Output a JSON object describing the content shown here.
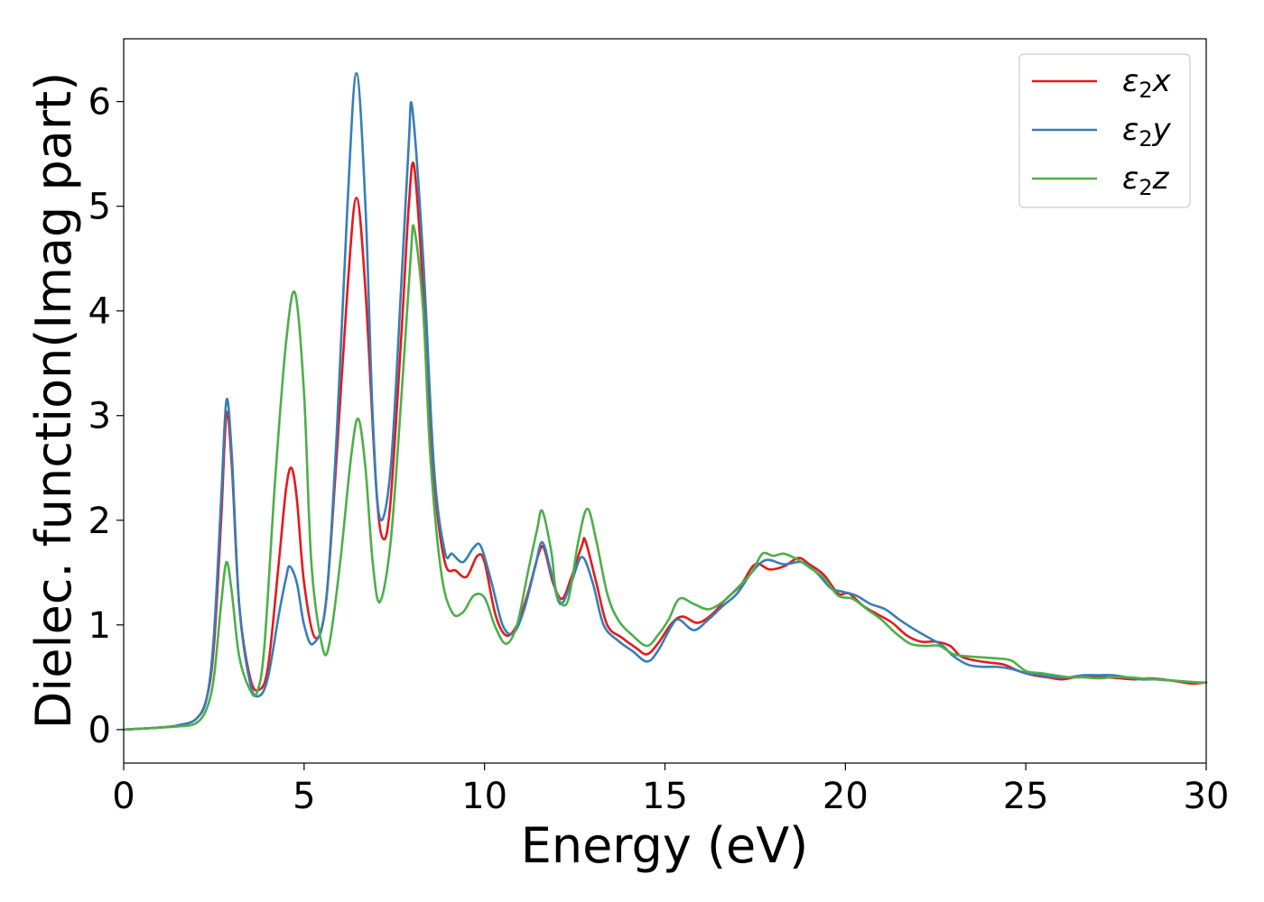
{
  "chart_data": {
    "type": "line",
    "title": "",
    "xlabel": "Energy (eV)",
    "ylabel": "Dielec. function(Imag part)",
    "xlim": [
      0,
      30
    ],
    "ylim": [
      -0.32,
      6.6
    ],
    "xticks": [
      0,
      5,
      10,
      15,
      20,
      25,
      30
    ],
    "yticks": [
      0,
      1,
      2,
      3,
      4,
      5,
      6
    ],
    "grid": false,
    "legend_position": "top-right",
    "legend": [
      {
        "base": "ε",
        "sub": "2",
        "var": "x"
      },
      {
        "base": "ε",
        "sub": "2",
        "var": "y"
      },
      {
        "base": "ε",
        "sub": "2",
        "var": "z"
      }
    ],
    "series": [
      {
        "name": "ε2x",
        "color": "#e41a1c",
        "points": [
          [
            0,
            0
          ],
          [
            1,
            0.02
          ],
          [
            1.5,
            0.04
          ],
          [
            2.0,
            0.1
          ],
          [
            2.3,
            0.3
          ],
          [
            2.5,
            0.8
          ],
          [
            2.7,
            2.0
          ],
          [
            2.85,
            3.02
          ],
          [
            3.0,
            2.5
          ],
          [
            3.2,
            1.2
          ],
          [
            3.5,
            0.5
          ],
          [
            3.75,
            0.38
          ],
          [
            4.0,
            0.6
          ],
          [
            4.3,
            1.6
          ],
          [
            4.5,
            2.3
          ],
          [
            4.65,
            2.5
          ],
          [
            4.8,
            2.2
          ],
          [
            5.0,
            1.4
          ],
          [
            5.3,
            0.88
          ],
          [
            5.6,
            1.2
          ],
          [
            5.9,
            2.6
          ],
          [
            6.2,
            4.2
          ],
          [
            6.45,
            5.08
          ],
          [
            6.7,
            4.2
          ],
          [
            7.0,
            2.3
          ],
          [
            7.2,
            1.82
          ],
          [
            7.4,
            2.2
          ],
          [
            7.7,
            3.8
          ],
          [
            7.9,
            5.0
          ],
          [
            8.05,
            5.38
          ],
          [
            8.3,
            4.2
          ],
          [
            8.6,
            2.4
          ],
          [
            8.9,
            1.6
          ],
          [
            9.2,
            1.52
          ],
          [
            9.5,
            1.46
          ],
          [
            9.8,
            1.66
          ],
          [
            10.0,
            1.6
          ],
          [
            10.3,
            1.1
          ],
          [
            10.6,
            0.9
          ],
          [
            10.9,
            1.0
          ],
          [
            11.2,
            1.3
          ],
          [
            11.5,
            1.68
          ],
          [
            11.65,
            1.73
          ],
          [
            11.9,
            1.4
          ],
          [
            12.15,
            1.25
          ],
          [
            12.4,
            1.45
          ],
          [
            12.7,
            1.76
          ],
          [
            12.8,
            1.8
          ],
          [
            13.1,
            1.4
          ],
          [
            13.4,
            1.0
          ],
          [
            13.8,
            0.88
          ],
          [
            14.2,
            0.78
          ],
          [
            14.5,
            0.72
          ],
          [
            14.8,
            0.82
          ],
          [
            15.2,
            1.02
          ],
          [
            15.5,
            1.08
          ],
          [
            15.9,
            1.02
          ],
          [
            16.3,
            1.1
          ],
          [
            16.7,
            1.25
          ],
          [
            17.1,
            1.38
          ],
          [
            17.5,
            1.58
          ],
          [
            17.9,
            1.53
          ],
          [
            18.3,
            1.56
          ],
          [
            18.7,
            1.64
          ],
          [
            19.0,
            1.58
          ],
          [
            19.4,
            1.48
          ],
          [
            19.8,
            1.3
          ],
          [
            20.1,
            1.3
          ],
          [
            20.5,
            1.18
          ],
          [
            20.9,
            1.1
          ],
          [
            21.3,
            1.02
          ],
          [
            21.7,
            0.9
          ],
          [
            22.1,
            0.84
          ],
          [
            22.5,
            0.84
          ],
          [
            22.9,
            0.8
          ],
          [
            23.2,
            0.7
          ],
          [
            23.6,
            0.66
          ],
          [
            24.0,
            0.64
          ],
          [
            24.4,
            0.62
          ],
          [
            24.8,
            0.56
          ],
          [
            25.2,
            0.52
          ],
          [
            25.6,
            0.5
          ],
          [
            26.0,
            0.48
          ],
          [
            26.4,
            0.5
          ],
          [
            26.8,
            0.5
          ],
          [
            27.2,
            0.5
          ],
          [
            27.6,
            0.49
          ],
          [
            28.0,
            0.48
          ],
          [
            28.4,
            0.49
          ],
          [
            28.8,
            0.48
          ],
          [
            29.2,
            0.46
          ],
          [
            29.6,
            0.44
          ],
          [
            30.0,
            0.45
          ]
        ]
      },
      {
        "name": "ε2y",
        "color": "#377eb8",
        "points": [
          [
            0,
            0
          ],
          [
            1,
            0.02
          ],
          [
            1.5,
            0.04
          ],
          [
            2.0,
            0.1
          ],
          [
            2.3,
            0.3
          ],
          [
            2.5,
            0.9
          ],
          [
            2.7,
            2.2
          ],
          [
            2.85,
            3.15
          ],
          [
            3.0,
            2.6
          ],
          [
            3.2,
            1.2
          ],
          [
            3.5,
            0.45
          ],
          [
            3.75,
            0.32
          ],
          [
            4.0,
            0.5
          ],
          [
            4.3,
            1.1
          ],
          [
            4.5,
            1.45
          ],
          [
            4.6,
            1.56
          ],
          [
            4.8,
            1.4
          ],
          [
            5.0,
            1.0
          ],
          [
            5.25,
            0.82
          ],
          [
            5.6,
            1.2
          ],
          [
            5.9,
            2.8
          ],
          [
            6.2,
            5.0
          ],
          [
            6.45,
            6.27
          ],
          [
            6.7,
            5.0
          ],
          [
            6.9,
            3.0
          ],
          [
            7.1,
            2.02
          ],
          [
            7.4,
            2.5
          ],
          [
            7.7,
            4.3
          ],
          [
            7.9,
            5.6
          ],
          [
            8.0,
            5.93
          ],
          [
            8.3,
            4.5
          ],
          [
            8.6,
            2.5
          ],
          [
            8.9,
            1.7
          ],
          [
            9.1,
            1.68
          ],
          [
            9.4,
            1.6
          ],
          [
            9.7,
            1.74
          ],
          [
            9.9,
            1.75
          ],
          [
            10.2,
            1.4
          ],
          [
            10.5,
            1.0
          ],
          [
            10.8,
            0.92
          ],
          [
            11.1,
            1.15
          ],
          [
            11.4,
            1.55
          ],
          [
            11.6,
            1.79
          ],
          [
            11.85,
            1.5
          ],
          [
            12.1,
            1.2
          ],
          [
            12.4,
            1.4
          ],
          [
            12.7,
            1.65
          ],
          [
            13.0,
            1.4
          ],
          [
            13.3,
            1.0
          ],
          [
            13.7,
            0.85
          ],
          [
            14.1,
            0.75
          ],
          [
            14.5,
            0.65
          ],
          [
            14.8,
            0.75
          ],
          [
            15.2,
            1.0
          ],
          [
            15.4,
            1.05
          ],
          [
            15.8,
            0.95
          ],
          [
            16.2,
            1.05
          ],
          [
            16.6,
            1.18
          ],
          [
            17.0,
            1.3
          ],
          [
            17.4,
            1.5
          ],
          [
            17.8,
            1.62
          ],
          [
            18.3,
            1.58
          ],
          [
            18.8,
            1.6
          ],
          [
            19.2,
            1.5
          ],
          [
            19.6,
            1.35
          ],
          [
            19.9,
            1.32
          ],
          [
            20.3,
            1.28
          ],
          [
            20.7,
            1.2
          ],
          [
            21.1,
            1.15
          ],
          [
            21.5,
            1.05
          ],
          [
            21.9,
            0.96
          ],
          [
            22.3,
            0.88
          ],
          [
            22.7,
            0.8
          ],
          [
            23.0,
            0.7
          ],
          [
            23.4,
            0.62
          ],
          [
            23.8,
            0.6
          ],
          [
            24.2,
            0.6
          ],
          [
            24.6,
            0.58
          ],
          [
            25.0,
            0.54
          ],
          [
            25.4,
            0.52
          ],
          [
            25.8,
            0.5
          ],
          [
            26.2,
            0.5
          ],
          [
            26.6,
            0.52
          ],
          [
            27.0,
            0.52
          ],
          [
            27.4,
            0.52
          ],
          [
            27.8,
            0.5
          ],
          [
            28.2,
            0.48
          ],
          [
            28.6,
            0.48
          ],
          [
            29.0,
            0.47
          ],
          [
            29.4,
            0.46
          ],
          [
            29.8,
            0.45
          ],
          [
            30.0,
            0.45
          ]
        ]
      },
      {
        "name": "ε2z",
        "color": "#4daf4a",
        "points": [
          [
            0,
            0
          ],
          [
            1,
            0.02
          ],
          [
            1.5,
            0.03
          ],
          [
            2.0,
            0.06
          ],
          [
            2.3,
            0.2
          ],
          [
            2.5,
            0.5
          ],
          [
            2.7,
            1.2
          ],
          [
            2.85,
            1.6
          ],
          [
            3.0,
            1.3
          ],
          [
            3.2,
            0.7
          ],
          [
            3.5,
            0.38
          ],
          [
            3.7,
            0.36
          ],
          [
            3.9,
            0.8
          ],
          [
            4.2,
            2.4
          ],
          [
            4.5,
            3.7
          ],
          [
            4.75,
            4.17
          ],
          [
            5.0,
            3.2
          ],
          [
            5.2,
            1.6
          ],
          [
            5.5,
            0.8
          ],
          [
            5.7,
            0.82
          ],
          [
            6.0,
            1.6
          ],
          [
            6.3,
            2.6
          ],
          [
            6.5,
            2.97
          ],
          [
            6.7,
            2.5
          ],
          [
            6.9,
            1.6
          ],
          [
            7.1,
            1.22
          ],
          [
            7.4,
            1.8
          ],
          [
            7.7,
            3.2
          ],
          [
            7.95,
            4.5
          ],
          [
            8.05,
            4.79
          ],
          [
            8.3,
            4.0
          ],
          [
            8.5,
            2.6
          ],
          [
            8.8,
            1.5
          ],
          [
            9.1,
            1.12
          ],
          [
            9.4,
            1.12
          ],
          [
            9.7,
            1.28
          ],
          [
            10.0,
            1.26
          ],
          [
            10.3,
            0.98
          ],
          [
            10.6,
            0.82
          ],
          [
            10.9,
            1.0
          ],
          [
            11.2,
            1.5
          ],
          [
            11.45,
            1.9
          ],
          [
            11.6,
            2.09
          ],
          [
            11.85,
            1.7
          ],
          [
            12.0,
            1.3
          ],
          [
            12.3,
            1.22
          ],
          [
            12.6,
            1.8
          ],
          [
            12.85,
            2.11
          ],
          [
            13.1,
            1.8
          ],
          [
            13.4,
            1.3
          ],
          [
            13.7,
            1.05
          ],
          [
            14.1,
            0.9
          ],
          [
            14.5,
            0.8
          ],
          [
            14.8,
            0.9
          ],
          [
            15.1,
            1.05
          ],
          [
            15.4,
            1.25
          ],
          [
            15.8,
            1.2
          ],
          [
            16.2,
            1.15
          ],
          [
            16.6,
            1.22
          ],
          [
            17.0,
            1.35
          ],
          [
            17.4,
            1.5
          ],
          [
            17.7,
            1.68
          ],
          [
            18.0,
            1.66
          ],
          [
            18.3,
            1.68
          ],
          [
            18.7,
            1.62
          ],
          [
            19.0,
            1.55
          ],
          [
            19.4,
            1.45
          ],
          [
            19.8,
            1.28
          ],
          [
            20.2,
            1.25
          ],
          [
            20.6,
            1.15
          ],
          [
            21.0,
            1.05
          ],
          [
            21.4,
            0.92
          ],
          [
            21.8,
            0.82
          ],
          [
            22.2,
            0.8
          ],
          [
            22.6,
            0.8
          ],
          [
            23.0,
            0.72
          ],
          [
            23.4,
            0.7
          ],
          [
            23.8,
            0.69
          ],
          [
            24.2,
            0.68
          ],
          [
            24.6,
            0.66
          ],
          [
            25.0,
            0.56
          ],
          [
            25.4,
            0.54
          ],
          [
            25.8,
            0.52
          ],
          [
            26.2,
            0.5
          ],
          [
            26.6,
            0.5
          ],
          [
            27.0,
            0.49
          ],
          [
            27.4,
            0.5
          ],
          [
            27.8,
            0.5
          ],
          [
            28.2,
            0.49
          ],
          [
            28.6,
            0.48
          ],
          [
            29.0,
            0.47
          ],
          [
            29.4,
            0.46
          ],
          [
            29.8,
            0.45
          ],
          [
            30.0,
            0.45
          ]
        ]
      }
    ]
  }
}
